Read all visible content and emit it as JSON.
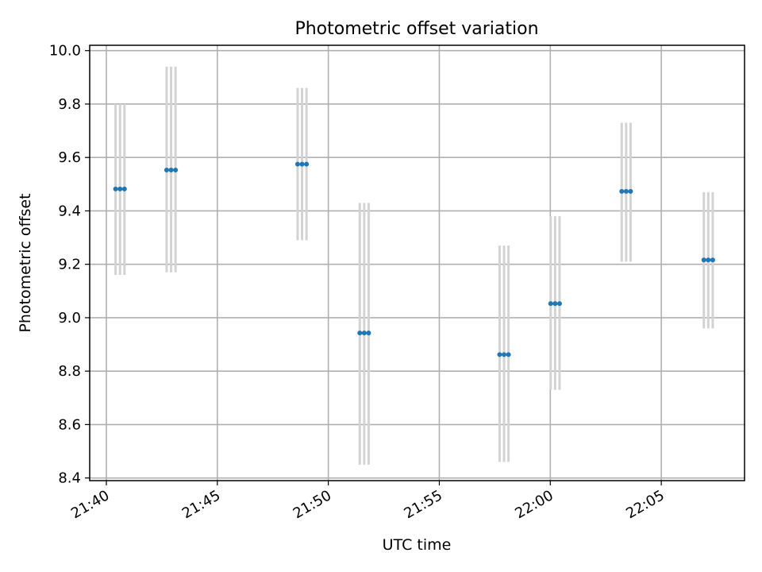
{
  "chart_data": {
    "type": "scatter",
    "title": "Photometric offset variation",
    "xlabel": "UTC time",
    "ylabel": "Photometric offset",
    "x_tick_labels": [
      "21:40",
      "21:45",
      "21:50",
      "21:55",
      "22:00",
      "22:05"
    ],
    "y_tick_labels": [
      "8.4",
      "8.6",
      "8.8",
      "9.0",
      "9.2",
      "9.4",
      "9.6",
      "9.8",
      "10.0"
    ],
    "x_ticks": [
      "21:40",
      "21:45",
      "21:50",
      "21:55",
      "22:00",
      "22:05"
    ],
    "y_ticks": [
      8.4,
      8.6,
      8.8,
      9.0,
      9.2,
      9.4,
      9.6,
      9.8,
      10.0
    ],
    "xlim": [
      "21:39:15",
      "22:08:45"
    ],
    "ylim": [
      8.39,
      10.02
    ],
    "grid": true,
    "marker_color": "#1f77b4",
    "errorbar_color": "#d3d3d3",
    "points": [
      {
        "time": "21:40:25",
        "y": 9.482,
        "lower": 9.16,
        "upper": 9.8
      },
      {
        "time": "21:40:37",
        "y": 9.482,
        "lower": 9.16,
        "upper": 9.8
      },
      {
        "time": "21:40:49",
        "y": 9.482,
        "lower": 9.16,
        "upper": 9.8
      },
      {
        "time": "21:42:43",
        "y": 9.553,
        "lower": 9.17,
        "upper": 9.94
      },
      {
        "time": "21:42:55",
        "y": 9.553,
        "lower": 9.17,
        "upper": 9.94
      },
      {
        "time": "21:43:07",
        "y": 9.553,
        "lower": 9.17,
        "upper": 9.94
      },
      {
        "time": "21:48:37",
        "y": 9.575,
        "lower": 9.29,
        "upper": 9.86
      },
      {
        "time": "21:48:49",
        "y": 9.575,
        "lower": 9.29,
        "upper": 9.86
      },
      {
        "time": "21:49:01",
        "y": 9.575,
        "lower": 9.29,
        "upper": 9.86
      },
      {
        "time": "21:51:25",
        "y": 8.943,
        "lower": 8.45,
        "upper": 9.43
      },
      {
        "time": "21:51:37",
        "y": 8.943,
        "lower": 8.45,
        "upper": 9.43
      },
      {
        "time": "21:51:49",
        "y": 8.943,
        "lower": 8.45,
        "upper": 9.43
      },
      {
        "time": "21:57:43",
        "y": 8.862,
        "lower": 8.46,
        "upper": 9.27
      },
      {
        "time": "21:57:55",
        "y": 8.862,
        "lower": 8.46,
        "upper": 9.27
      },
      {
        "time": "21:58:07",
        "y": 8.862,
        "lower": 8.46,
        "upper": 9.27
      },
      {
        "time": "22:00:01",
        "y": 9.053,
        "lower": 8.73,
        "upper": 9.38
      },
      {
        "time": "22:00:13",
        "y": 9.053,
        "lower": 8.73,
        "upper": 9.38
      },
      {
        "time": "22:00:25",
        "y": 9.053,
        "lower": 8.73,
        "upper": 9.38
      },
      {
        "time": "22:03:13",
        "y": 9.473,
        "lower": 9.21,
        "upper": 9.73
      },
      {
        "time": "22:03:25",
        "y": 9.473,
        "lower": 9.21,
        "upper": 9.73
      },
      {
        "time": "22:03:37",
        "y": 9.473,
        "lower": 9.21,
        "upper": 9.73
      },
      {
        "time": "22:06:55",
        "y": 9.216,
        "lower": 8.96,
        "upper": 9.47
      },
      {
        "time": "22:07:07",
        "y": 9.216,
        "lower": 8.96,
        "upper": 9.47
      },
      {
        "time": "22:07:19",
        "y": 9.216,
        "lower": 8.96,
        "upper": 9.47
      }
    ]
  }
}
